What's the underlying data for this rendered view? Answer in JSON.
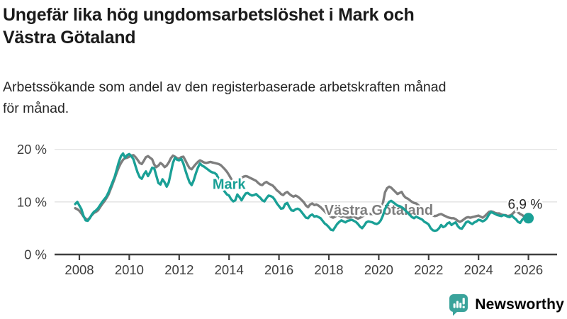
{
  "header": {
    "title_lines": [
      "Ungefär lika hög ungdomsarbetslöshet i Mark och",
      "Västra Götaland"
    ],
    "subtitle_lines": [
      "Arbetssökande som andel av den registerbaserade arbetskraften månad",
      "för månad."
    ]
  },
  "branding": {
    "logo_text": "Newsworthy",
    "logo_color": "#3aa39b",
    "logo_icon": "bar-chart-speech-bubble-icon"
  },
  "chart_data": {
    "type": "line",
    "title": "Ungefär lika hög ungdomsarbetslöshet i Mark och Västra Götaland",
    "subtitle": "Arbetssökande som andel av den registerbaserade arbetskraften månad för månad.",
    "grid": "horizontal-only",
    "style": {
      "grid_color": "#e2e2e2",
      "axis_color": "#3f3f3f",
      "background": "#ffffff"
    },
    "x_axis": {
      "start_year": 2007.8333,
      "points_per_year": 12,
      "ticks": [
        2008,
        2010,
        2012,
        2014,
        2016,
        2018,
        2020,
        2022,
        2024,
        2026
      ]
    },
    "y_axis": {
      "unit": "%",
      "ylim": [
        0,
        21
      ],
      "ticks": [
        {
          "value": 0,
          "label": "0 %"
        },
        {
          "value": 10,
          "label": "10 %"
        },
        {
          "value": 20,
          "label": "20 %"
        }
      ]
    },
    "series": [
      {
        "name": "Västra Götaland",
        "color": "#7e7e7e",
        "label": {
          "text": "Västra Götaland",
          "year": 2020.0,
          "pct": 7.55
        },
        "values": [
          8.8,
          8.6,
          8.3,
          7.8,
          7.2,
          6.8,
          6.6,
          7.0,
          7.5,
          7.9,
          8.1,
          8.4,
          9.0,
          9.6,
          10.1,
          10.7,
          11.4,
          12.4,
          13.4,
          14.5,
          15.6,
          16.6,
          17.4,
          18.0,
          18.3,
          18.4,
          18.6,
          18.8,
          18.9,
          18.5,
          18.0,
          17.4,
          17.2,
          17.8,
          18.5,
          18.7,
          18.4,
          18.1,
          17.1,
          16.6,
          16.9,
          17.4,
          17.1,
          16.6,
          16.9,
          17.5,
          18.3,
          18.8,
          18.6,
          18.3,
          18.2,
          18.5,
          18.6,
          17.9,
          17.1,
          16.4,
          16.2,
          16.7,
          17.2,
          17.6,
          17.9,
          17.7,
          17.5,
          17.4,
          17.5,
          17.6,
          17.5,
          17.4,
          17.3,
          17.2,
          17.0,
          16.6,
          16.2,
          15.7,
          15.1,
          14.4,
          13.7,
          13.2,
          13.6,
          14.1,
          14.6,
          14.8,
          14.9,
          14.8,
          14.6,
          14.4,
          14.2,
          14.0,
          13.6,
          13.3,
          13.2,
          13.6,
          13.8,
          13.5,
          13.3,
          13.1,
          12.7,
          12.2,
          11.9,
          11.5,
          11.3,
          11.7,
          11.9,
          11.5,
          11.2,
          11.0,
          11.2,
          11.0,
          10.7,
          10.3,
          9.9,
          9.3,
          9.0,
          9.5,
          9.7,
          9.4,
          9.5,
          9.3,
          9.0,
          8.6,
          8.2,
          7.8,
          7.5,
          7.2,
          7.0,
          7.2,
          7.5,
          7.4,
          7.2,
          7.3,
          7.2,
          7.0,
          7.0,
          7.2,
          7.3,
          7.0,
          6.8,
          7.0,
          7.2,
          7.5,
          7.7,
          7.8,
          7.7,
          7.7,
          7.8,
          8.0,
          8.2,
          8.5,
          9.8,
          11.8,
          12.6,
          12.9,
          12.7,
          12.3,
          11.9,
          11.5,
          11.7,
          11.9,
          11.2,
          10.8,
          10.6,
          10.3,
          10.0,
          9.8,
          9.7,
          9.4,
          9.0,
          8.6,
          8.3,
          8.1,
          7.9,
          7.7,
          7.4,
          7.3,
          7.4,
          7.6,
          7.7,
          7.5,
          7.3,
          7.1,
          7.0,
          6.9,
          6.9,
          6.7,
          6.4,
          6.2,
          6.4,
          6.7,
          7.0,
          7.1,
          7.0,
          7.1,
          7.2,
          7.3,
          7.4,
          7.2,
          7.0,
          7.3,
          7.7,
          8.1,
          8.2,
          8.1,
          7.9,
          7.8,
          7.8,
          7.6,
          7.5,
          7.5,
          7.3,
          7.4,
          7.6,
          8.0,
          8.4,
          8.0,
          7.7,
          7.5,
          7.2,
          7.0,
          6.8
        ]
      },
      {
        "name": "Mark",
        "color": "#1aa096",
        "label": {
          "text": "Mark",
          "year": 2014.0,
          "pct": 12.5
        },
        "end": {
          "dot": true,
          "label": "6,9 %"
        },
        "values": [
          9.6,
          10.0,
          9.3,
          8.6,
          7.3,
          6.5,
          6.4,
          6.9,
          7.6,
          8.1,
          8.4,
          8.8,
          9.4,
          10.0,
          10.5,
          11.0,
          11.8,
          12.8,
          13.8,
          14.8,
          16.2,
          17.6,
          18.7,
          19.2,
          18.4,
          18.9,
          19.1,
          18.7,
          18.1,
          16.8,
          15.6,
          14.7,
          14.4,
          15.2,
          15.8,
          14.9,
          15.6,
          16.5,
          16.4,
          15.0,
          13.6,
          13.3,
          14.3,
          13.7,
          12.9,
          13.7,
          15.6,
          17.4,
          18.4,
          18.0,
          17.9,
          18.2,
          17.3,
          16.0,
          14.8,
          13.7,
          13.2,
          14.1,
          15.4,
          16.5,
          17.3,
          16.9,
          16.7,
          16.4,
          16.1,
          15.8,
          15.6,
          15.5,
          15.2,
          14.4,
          13.4,
          12.5,
          11.9,
          11.4,
          11.2,
          10.5,
          10.1,
          10.3,
          11.4,
          10.9,
          10.3,
          11.0,
          11.6,
          11.7,
          11.4,
          11.2,
          11.3,
          11.5,
          11.1,
          10.8,
          10.3,
          10.1,
          10.7,
          11.2,
          11.1,
          10.9,
          10.4,
          9.7,
          9.2,
          8.7,
          8.8,
          9.6,
          9.8,
          9.0,
          8.4,
          8.3,
          8.6,
          8.7,
          8.5,
          8.0,
          7.5,
          7.0,
          6.9,
          7.4,
          7.6,
          7.2,
          7.3,
          7.1,
          6.9,
          6.4,
          5.9,
          5.6,
          5.2,
          4.7,
          4.6,
          5.2,
          5.8,
          6.2,
          6.5,
          6.3,
          6.1,
          6.4,
          6.5,
          6.6,
          6.4,
          6.2,
          5.8,
          5.3,
          5.0,
          5.5,
          6.1,
          6.3,
          6.2,
          6.1,
          5.9,
          5.8,
          6.0,
          6.5,
          7.4,
          8.6,
          9.4,
          10.0,
          10.2,
          9.9,
          9.6,
          9.3,
          9.2,
          9.0,
          8.7,
          8.3,
          7.9,
          7.5,
          7.1,
          6.9,
          7.2,
          7.0,
          6.8,
          6.6,
          6.2,
          6.0,
          5.7,
          5.0,
          4.6,
          4.5,
          4.6,
          5.0,
          5.6,
          5.2,
          5.4,
          5.9,
          6.1,
          5.6,
          5.9,
          6.1,
          5.4,
          5.0,
          4.9,
          5.5,
          6.1,
          6.3,
          6.0,
          5.8,
          6.1,
          6.3,
          6.6,
          6.5,
          6.3,
          6.5,
          6.9,
          7.6,
          8.1,
          7.9,
          7.7,
          7.5,
          7.4,
          7.3,
          7.5,
          7.4,
          7.2,
          7.1,
          7.4,
          7.0,
          6.7,
          6.2,
          6.0,
          6.6,
          7.0,
          6.7,
          6.9
        ]
      }
    ]
  }
}
